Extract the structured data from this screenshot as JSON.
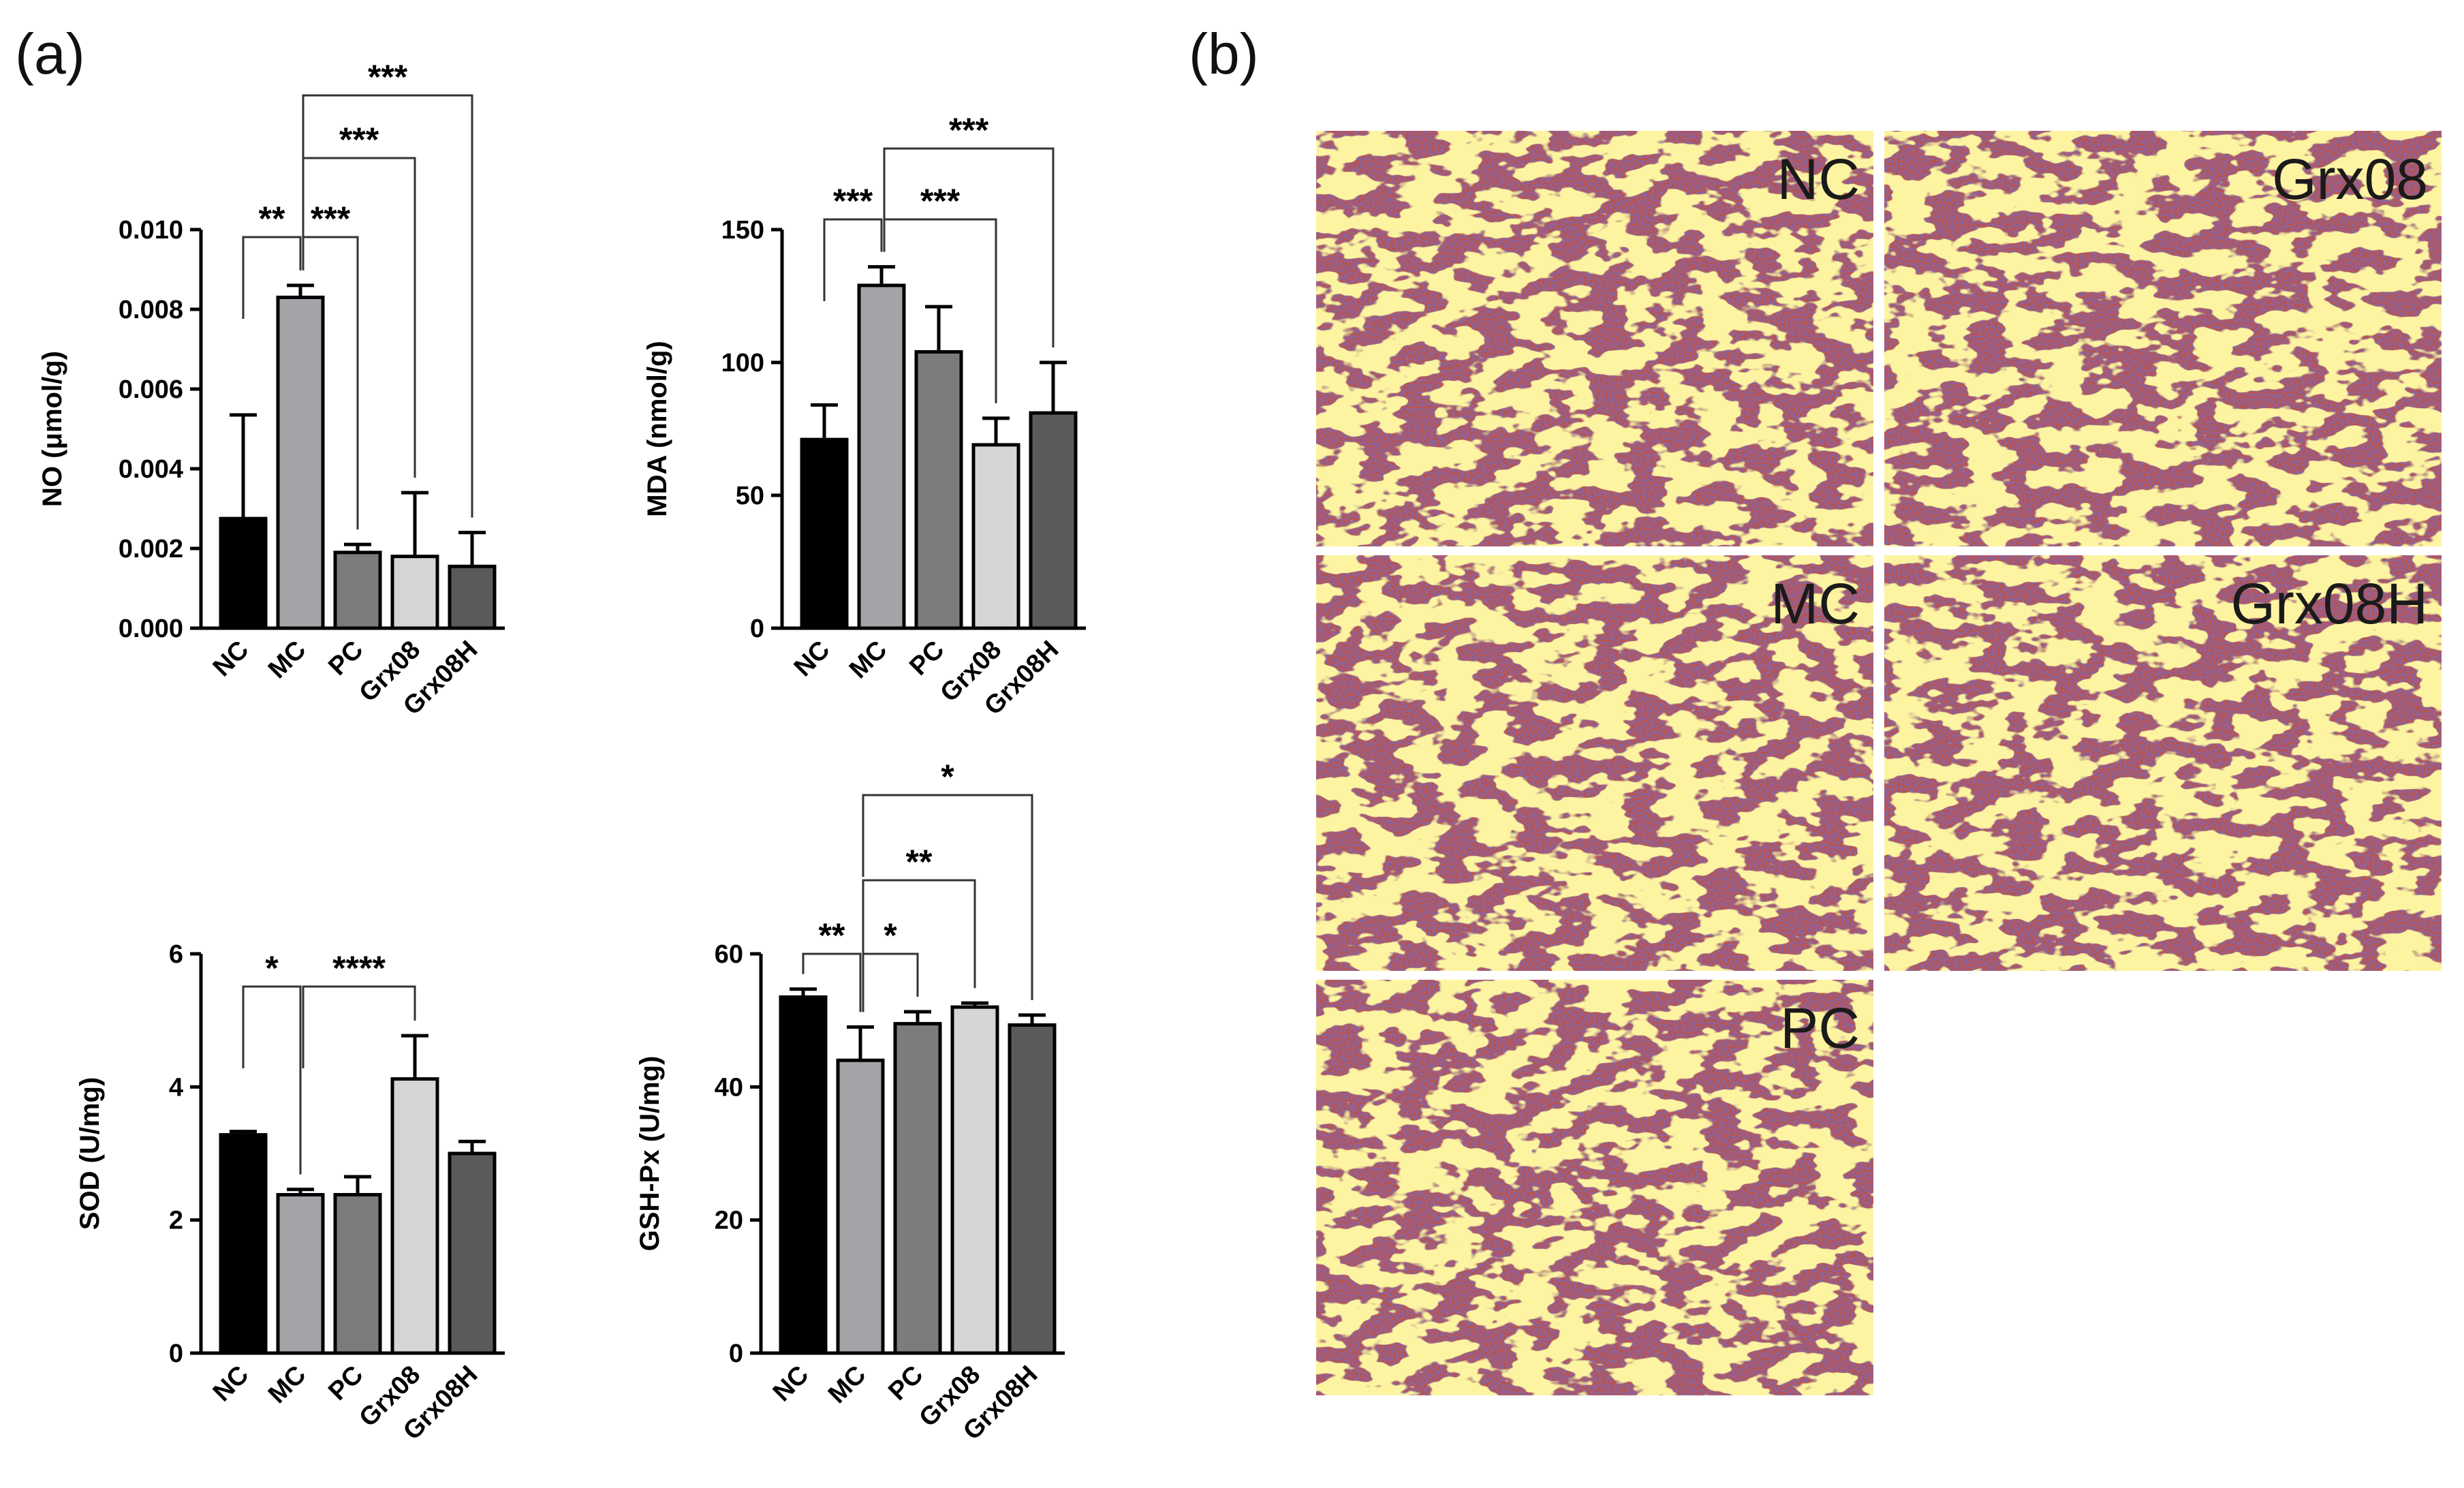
{
  "panel_labels": {
    "a": "(a)",
    "b": "(b)"
  },
  "palette": {
    "NC": "#000000",
    "MC": "#a3a3a8",
    "PC": "#7c7c7c",
    "Grx08": "#d6d6d6",
    "Grx08H": "#5a5a5a"
  },
  "chart_data": [
    {
      "type": "bar",
      "ylabel": "NO (μmol/g)",
      "categories": [
        "NC",
        "MC",
        "PC",
        "Grx08",
        "Grx08H"
      ],
      "values": [
        0.00275,
        0.0083,
        0.0019,
        0.0018,
        0.00155
      ],
      "errors": [
        0.0026,
        0.0003,
        0.0002,
        0.0016,
        0.00085
      ],
      "ylim": [
        0,
        0.01
      ],
      "yticks": [
        "0.000",
        "0.002",
        "0.004",
        "0.006",
        "0.008",
        "0.010"
      ],
      "significance": [
        {
          "from": 0,
          "to": 1,
          "label": "**"
        },
        {
          "from": 1,
          "to": 2,
          "label": "***"
        },
        {
          "from": 1,
          "to": 3,
          "label": "***"
        },
        {
          "from": 1,
          "to": 4,
          "label": "***"
        }
      ]
    },
    {
      "type": "bar",
      "ylabel": "MDA (nmol/g)",
      "categories": [
        "NC",
        "MC",
        "PC",
        "Grx08",
        "Grx08H"
      ],
      "values": [
        71,
        129,
        104,
        69,
        81
      ],
      "errors": [
        13,
        7,
        17,
        10,
        19
      ],
      "ylim": [
        0,
        150
      ],
      "yticks": [
        "0",
        "50",
        "100",
        "150"
      ],
      "significance": [
        {
          "from": 0,
          "to": 1,
          "label": "***"
        },
        {
          "from": 1,
          "to": 3,
          "label": "***"
        },
        {
          "from": 1,
          "to": 4,
          "label": "***"
        }
      ]
    },
    {
      "type": "bar",
      "ylabel": "SOD (U/mg)",
      "categories": [
        "NC",
        "MC",
        "PC",
        "Grx08",
        "Grx08H"
      ],
      "values": [
        3.28,
        2.38,
        2.38,
        4.12,
        3.0
      ],
      "errors": [
        0.05,
        0.08,
        0.27,
        0.65,
        0.18
      ],
      "ylim": [
        0,
        6
      ],
      "yticks": [
        "0",
        "2",
        "4",
        "6"
      ],
      "significance": [
        {
          "from": 0,
          "to": 1,
          "label": "*"
        },
        {
          "from": 1,
          "to": 3,
          "label": "****"
        }
      ]
    },
    {
      "type": "bar",
      "ylabel": "GSH-Px (U/mg)",
      "categories": [
        "NC",
        "MC",
        "PC",
        "Grx08",
        "Grx08H"
      ],
      "values": [
        53.5,
        44,
        49.5,
        52,
        49.3
      ],
      "errors": [
        1.2,
        5.0,
        1.8,
        0.6,
        1.5
      ],
      "ylim": [
        0,
        60
      ],
      "yticks": [
        "0",
        "20",
        "40",
        "60"
      ],
      "significance": [
        {
          "from": 0,
          "to": 1,
          "label": "**"
        },
        {
          "from": 1,
          "to": 2,
          "label": "*"
        },
        {
          "from": 1,
          "to": 3,
          "label": "**"
        },
        {
          "from": 1,
          "to": 4,
          "label": "*"
        }
      ]
    }
  ],
  "micrographs": [
    "NC",
    "Grx08",
    "MC",
    "Grx08H",
    "PC"
  ]
}
